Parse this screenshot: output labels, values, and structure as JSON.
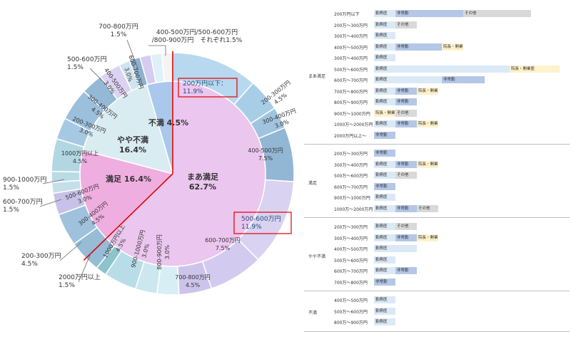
{
  "chart_data": [
    {
      "type": "pie",
      "inner": [
        {
          "label": "まあ満足",
          "value": 62.7,
          "color": "#ebc6ee"
        },
        {
          "label": "満足",
          "value": 16.4,
          "color": "#efaee0"
        },
        {
          "label": "やや不満",
          "value": 16.4,
          "color": "#d9ecf2"
        },
        {
          "label": "不満",
          "value": 4.5,
          "color": "#a9c8ec"
        }
      ],
      "inner_text": {
        "mama": [
          "まあ満足",
          "62.7%"
        ],
        "manzoku": [
          "満足 16.4%"
        ],
        "yaya": [
          "やや不満",
          "16.4%"
        ],
        "fuman": [
          "不満 4.5%"
        ]
      },
      "outer": [
        {
          "group": "まあ満足",
          "label": "200万円以下",
          "value": 11.9,
          "color": "#b8d8ef"
        },
        {
          "group": "まあ満足",
          "label": "200-300万円",
          "value": 4.5,
          "color": "#a8cde6"
        },
        {
          "group": "まあ満足",
          "label": "300-400万円",
          "value": 3.0,
          "color": "#a0c4df"
        },
        {
          "group": "まあ満足",
          "label": "400-500万円",
          "value": 7.5,
          "color": "#92b7d4"
        },
        {
          "group": "まあ満足",
          "label": "500-600万円",
          "value": 11.9,
          "color": "#d9d2f1"
        },
        {
          "group": "まあ満足",
          "label": "600-700万円",
          "value": 7.5,
          "color": "#d3cbef"
        },
        {
          "group": "まあ満足",
          "label": "700-800万円",
          "value": 4.5,
          "color": "#ccc4ea"
        },
        {
          "group": "まあ満足",
          "label": "800-900万円",
          "value": 3.0,
          "color": "#d8eef5"
        },
        {
          "group": "まあ満足",
          "label": "900-1000万円",
          "value": 3.0,
          "color": "#cde7f0"
        },
        {
          "group": "まあ満足",
          "label": "1000万円以上",
          "value": 4.5,
          "color": "#b8dde8"
        },
        {
          "group": "満足",
          "label": "2000万円以上",
          "value": 1.5,
          "color": "#8cc4cc"
        },
        {
          "group": "満足",
          "label": "200-300万円",
          "value": 4.5,
          "color": "#96bcd6"
        },
        {
          "group": "満足",
          "label": "300-400万円",
          "value": 4.5,
          "color": "#9fc1dc"
        },
        {
          "group": "満足",
          "label": "500-600万円",
          "value": 3.0,
          "color": "#c8c1e8"
        },
        {
          "group": "満足",
          "label": "600-700万円",
          "value": 1.5,
          "color": "#c4dfe9"
        },
        {
          "group": "満足",
          "label": "900-1000万円",
          "value": 1.5,
          "color": "#b9dbe5"
        },
        {
          "group": "やや不満",
          "label": "1000万円以上",
          "value": 4.5,
          "color": "#b2d7e2"
        },
        {
          "group": "やや不満",
          "label": "200-300万円",
          "value": 3.0,
          "color": "#a6c9e3"
        },
        {
          "group": "やや不満",
          "label": "300-400万円",
          "value": 4.5,
          "color": "#9cbfdc"
        },
        {
          "group": "やや不満",
          "label": "400-500万円",
          "value": 3.0,
          "color": "#94b9d6"
        },
        {
          "group": "やや不満",
          "label": "600-700万円",
          "value": 3.0,
          "color": "#dcd3f2"
        },
        {
          "group": "やや不満",
          "label": "500-600万円",
          "value": 1.5,
          "color": "#cfe4ef"
        },
        {
          "group": "やや不満",
          "label": "700-800万円",
          "value": 1.5,
          "color": "#8fb1cf"
        },
        {
          "group": "不満",
          "label": "400-500万円",
          "value": 1.5,
          "color": "#d6ccf0"
        },
        {
          "group": "不満",
          "label": "500-600万円",
          "value": 1.5,
          "color": "#dff0f6"
        },
        {
          "group": "不満",
          "label": "800-900万円",
          "value": 1.5,
          "color": "#f4f4f4"
        }
      ],
      "outer_text": {
        "o200": [
          "200-300万円",
          "4.5%"
        ],
        "o300": [
          "300-400万円",
          "3.0%"
        ],
        "o400": [
          "400-500万円",
          "7.5%"
        ],
        "o600": [
          "600-700万円",
          "7.5%"
        ],
        "o700": [
          "700-800万円",
          "4.5%"
        ],
        "o800": [
          "800-900万円",
          "3.0%"
        ],
        "o900": [
          "900-1000万円",
          "3.0%"
        ],
        "o1000": [
          "1000万円以上",
          "4.5%"
        ],
        "s200": [
          "200-300万円",
          "4.5%"
        ],
        "s300": [
          "300-400万円",
          "4.5%"
        ],
        "s500": [
          "500-600万円",
          "3.0%"
        ],
        "y1000": [
          "1000万円以上",
          "4.5%"
        ],
        "y200": [
          "200-300万円",
          "3.0%"
        ],
        "y300": [
          "300-400万円",
          "4.5%"
        ],
        "y400": [
          "400-500万円",
          "3.0%"
        ],
        "y600": [
          "600-700万円",
          "3.0%"
        ]
      },
      "callouts": {
        "c700": [
          "700-800万円",
          "1.5%"
        ],
        "c4589": [
          "400-500万円/500-600万円",
          "/800-900万円　それぞれ1.5%"
        ],
        "c500": [
          "500-600万円",
          "1.5%"
        ],
        "c200box": [
          "200万円以下：",
          "11.9%"
        ],
        "c500box": [
          "500-600万円",
          "11.9%"
        ],
        "c9001000": [
          "900-1000万円",
          "1.5%"
        ],
        "c600700": [
          "600-700万円",
          "1.5%"
        ],
        "c200300": [
          "200-300万円",
          "4.5%"
        ],
        "c2000": [
          "2000万円以上",
          "1.5%"
        ]
      }
    },
    {
      "type": "bar",
      "legend_labels": {
        "kinmu": "勤務医",
        "hijokin": "非常勤",
        "incho": "院長・開業医",
        "sonota": "その他"
      },
      "colors": {
        "kinmu": "#dbe9f6",
        "hijokin": "#b4c7e7",
        "incho": "#fff2cc",
        "sonota": "#d9d9d9"
      },
      "groups": [
        {
          "name": "まあ満足",
          "rows": [
            {
              "label": "200万円以下",
              "segs": [
                [
                  "kinmu",
                  30
                ],
                [
                  "hijokin",
                  95
                ],
                [
                  "sonota",
                  95
                ]
              ]
            },
            {
              "label": "200万～300万円",
              "segs": [
                [
                  "kinmu",
                  30
                ],
                [
                  "sonota",
                  30
                ]
              ]
            },
            {
              "label": "300万～400万円",
              "segs": [
                [
                  "kinmu",
                  30
                ]
              ]
            },
            {
              "label": "400万～500万円",
              "segs": [
                [
                  "kinmu",
                  30
                ],
                [
                  "hijokin",
                  65
                ],
                [
                  "incho",
                  30
                ]
              ]
            },
            {
              "label": "300万～400万円",
              "segs": [
                [
                  "kinmu",
                  30
                ]
              ]
            },
            {
              "label": "500万～600万円",
              "segs": [
                [
                  "kinmu",
                  190
                ],
                [
                  "incho",
                  70
                ]
              ]
            },
            {
              "label": "600万～700万円",
              "segs": [
                [
                  "kinmu",
                  95
                ],
                [
                  "hijokin",
                  60
                ]
              ]
            },
            {
              "label": "700万～800万円",
              "segs": [
                [
                  "kinmu",
                  30
                ],
                [
                  "hijokin",
                  30
                ],
                [
                  "incho",
                  30
                ]
              ]
            },
            {
              "label": "800万～900万円",
              "segs": [
                [
                  "kinmu",
                  30
                ],
                [
                  "hijokin",
                  30
                ]
              ]
            },
            {
              "label": "900万～1000万円",
              "segs": [
                [
                  "incho",
                  30
                ],
                [
                  "sonota",
                  30
                ]
              ]
            },
            {
              "label": "1000万～2000万円",
              "segs": [
                [
                  "kinmu",
                  30
                ],
                [
                  "hijokin",
                  30
                ],
                [
                  "incho",
                  30
                ]
              ]
            },
            {
              "label": "2000万円以上～",
              "segs": [
                [
                  "hijokin",
                  30
                ]
              ]
            }
          ]
        },
        {
          "name": "満足",
          "rows": [
            {
              "label": "200万～300万円",
              "segs": [
                [
                  "hijokin",
                  30
                ]
              ]
            },
            {
              "label": "300万～400万円",
              "segs": [
                [
                  "kinmu",
                  30
                ],
                [
                  "hijokin",
                  30
                ],
                [
                  "incho",
                  30
                ]
              ]
            },
            {
              "label": "500万～600万円",
              "segs": [
                [
                  "kinmu",
                  30
                ],
                [
                  "sonota",
                  30
                ]
              ]
            },
            {
              "label": "600万～700万円",
              "segs": [
                [
                  "hijokin",
                  30
                ]
              ]
            },
            {
              "label": "900万～1000万円",
              "segs": [
                [
                  "kinmu",
                  30
                ]
              ]
            },
            {
              "label": "1000万～2000万円",
              "segs": [
                [
                  "kinmu",
                  30
                ],
                [
                  "hijokin",
                  30
                ],
                [
                  "sonota",
                  30
                ]
              ]
            }
          ]
        },
        {
          "name": "やや不満",
          "rows": [
            {
              "label": "200万～300万円",
              "segs": [
                [
                  "kinmu",
                  30
                ],
                [
                  "sonota",
                  30
                ]
              ]
            },
            {
              "label": "300万～400万円",
              "segs": [
                [
                  "kinmu",
                  30
                ],
                [
                  "hijokin",
                  30
                ],
                [
                  "incho",
                  30
                ]
              ]
            },
            {
              "label": "400万～500万円",
              "segs": [
                [
                  "kinmu",
                  60
                ]
              ]
            },
            {
              "label": "500万～600万円",
              "segs": [
                [
                  "kinmu",
                  30
                ]
              ]
            },
            {
              "label": "600万～700万円",
              "segs": [
                [
                  "kinmu",
                  30
                ],
                [
                  "hijokin",
                  30
                ]
              ]
            },
            {
              "label": "700万～800万円",
              "segs": [
                [
                  "hijokin",
                  30
                ]
              ]
            }
          ]
        },
        {
          "name": "不満",
          "rows": [
            {
              "label": "400万～500万円",
              "segs": [
                [
                  "kinmu",
                  30
                ]
              ]
            },
            {
              "label": "500万～600万円",
              "segs": [
                [
                  "kinmu",
                  30
                ]
              ]
            },
            {
              "label": "800万～900万円",
              "segs": [
                [
                  "kinmu",
                  30
                ]
              ]
            }
          ]
        }
      ]
    }
  ]
}
